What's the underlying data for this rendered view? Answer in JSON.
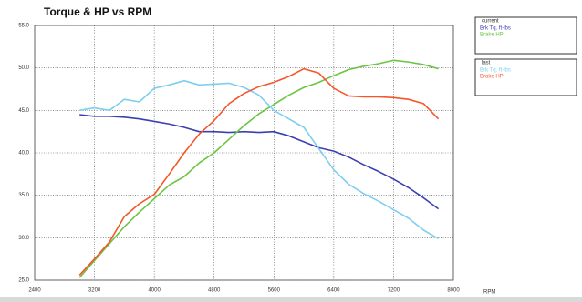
{
  "chart_data": {
    "type": "line",
    "title": "Torque & HP vs RPM",
    "x_label": "RPM",
    "x": [
      3000,
      3200,
      3400,
      3600,
      3800,
      4000,
      4200,
      4400,
      4600,
      4800,
      5000,
      5200,
      5400,
      5600,
      5800,
      6000,
      6200,
      6400,
      6600,
      6800,
      7000,
      7200,
      7400,
      7600,
      7800
    ],
    "legend_groups": [
      "current",
      "last"
    ],
    "series": [
      {
        "name": "Brk Tq. ft-lbs",
        "color": "#3b3fb2",
        "values": [
          44.5,
          44.3,
          44.3,
          44.2,
          44.0,
          43.7,
          43.4,
          43.0,
          42.5,
          42.5,
          42.4,
          42.5,
          42.4,
          42.5,
          42.0,
          41.3,
          40.6,
          40.2,
          39.5,
          38.6,
          37.8,
          36.9,
          35.9,
          34.7,
          33.4
        ]
      },
      {
        "name": "Brake HP",
        "color": "#6cc443",
        "values": [
          25.3,
          27.3,
          29.3,
          31.3,
          33.0,
          34.6,
          36.2,
          37.2,
          38.8,
          40.0,
          41.6,
          43.2,
          44.6,
          45.7,
          46.8,
          47.7,
          48.3,
          49.1,
          49.8,
          50.2,
          50.5,
          50.9,
          50.7,
          50.4,
          49.9
        ]
      },
      {
        "name": "Brk Tq. ft-lbs",
        "color": "#7dcff0",
        "values": [
          45.0,
          45.3,
          45.0,
          46.3,
          46.0,
          47.6,
          48.0,
          48.5,
          48.0,
          48.1,
          48.2,
          47.7,
          46.8,
          45.0,
          44.0,
          43.0,
          40.5,
          38.0,
          36.3,
          35.2,
          34.3,
          33.3,
          32.3,
          30.9,
          29.9
        ]
      },
      {
        "name": "Brake HP",
        "color": "#f4562a",
        "values": [
          25.6,
          27.5,
          29.5,
          32.5,
          34.0,
          35.1,
          37.5,
          40.0,
          42.2,
          43.8,
          45.8,
          47.0,
          47.8,
          48.3,
          49.0,
          49.9,
          49.4,
          47.6,
          46.7,
          46.6,
          46.6,
          46.5,
          46.3,
          45.8,
          44.0
        ]
      }
    ],
    "xlim": [
      2400,
      8000
    ],
    "xticks": [
      2400,
      3200,
      4000,
      4800,
      5600,
      6400,
      7200,
      8000
    ],
    "ylim": [
      25,
      55
    ],
    "yticks": [
      {
        "value": 25,
        "label": "25.0"
      },
      {
        "value": 30,
        "label": "30.0"
      },
      {
        "value": 35,
        "label": "35.0"
      },
      {
        "value": 40,
        "label": "40.0"
      },
      {
        "value": 45,
        "label": "45.0"
      },
      {
        "value": 50,
        "label": "50.0"
      },
      {
        "value": 55,
        "label": "55.0"
      }
    ],
    "grid": true
  }
}
